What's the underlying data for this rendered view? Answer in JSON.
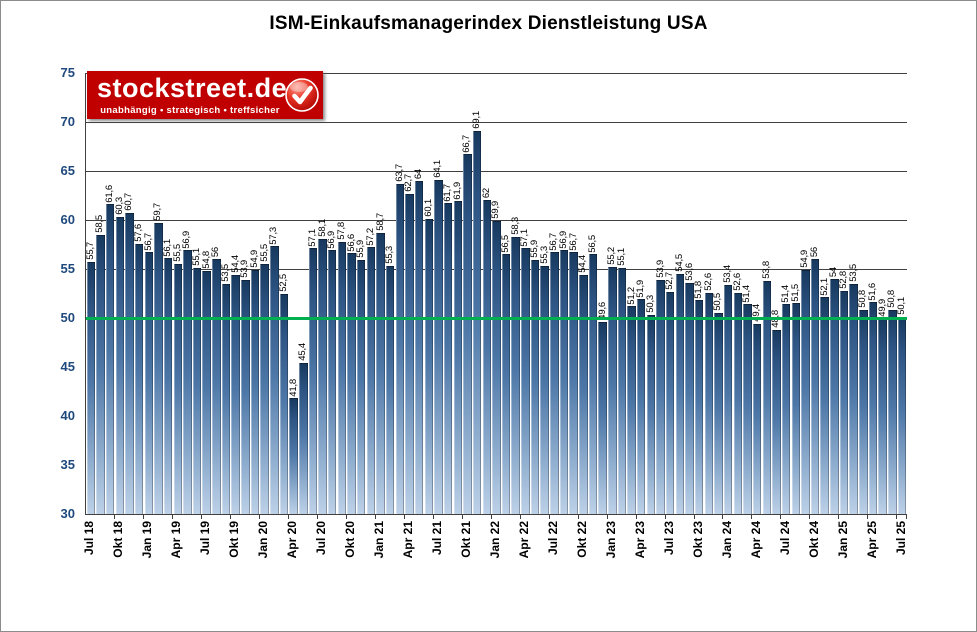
{
  "title": "ISM-Einkaufsmanagerindex Dienstleistung USA",
  "logo": {
    "name": "stockstreet.de",
    "tagline": "unabhängig • strategisch • treffsicher",
    "background_color": "#C00000",
    "badge_icon": "checkmark-icon"
  },
  "chart_data": {
    "type": "bar",
    "title": "ISM-Einkaufsmanagerindex Dienstleistung USA",
    "xlabel": "",
    "ylabel": "",
    "ylim": [
      30,
      75
    ],
    "y_ticks": [
      30,
      35,
      40,
      45,
      50,
      55,
      60,
      65,
      70,
      75
    ],
    "gridline_values": [
      55,
      60,
      65,
      70,
      75
    ],
    "grid_on": true,
    "reference_line": {
      "value": 50,
      "color": "#00B050"
    },
    "x_tick_interval": 3,
    "x_tick_labels": [
      "Jul 18",
      "Okt 18",
      "Jan 19",
      "Apr 19",
      "Jul 19",
      "Okt 19",
      "Jan 20",
      "Apr 20",
      "Jul 20",
      "Okt 20",
      "Jan 21",
      "Apr 21",
      "Jul 21",
      "Okt 21",
      "Jan 22",
      "Apr 22",
      "Jul 22",
      "Okt 22",
      "Jan 23",
      "Apr 23",
      "Jul 23",
      "Okt 23",
      "Jan 24",
      "Apr 24",
      "Jul 24",
      "Okt 24",
      "Jan 25",
      "Apr 25",
      "Jul 25"
    ],
    "values": [
      55.7,
      58.5,
      61.6,
      60.3,
      60.7,
      57.6,
      56.7,
      59.7,
      56.1,
      55.5,
      56.9,
      55.1,
      54.8,
      56,
      53.5,
      54.4,
      53.9,
      54.9,
      55.5,
      57.3,
      52.5,
      41.8,
      45.4,
      57.1,
      58.1,
      56.9,
      57.8,
      56.6,
      55.9,
      57.2,
      58.7,
      55.3,
      63.7,
      62.7,
      64,
      60.1,
      64.1,
      61.7,
      61.9,
      66.7,
      69.1,
      62,
      59.9,
      56.5,
      58.3,
      57.1,
      55.9,
      55.3,
      56.7,
      56.9,
      56.7,
      54.4,
      56.5,
      49.6,
      55.2,
      55.1,
      51.2,
      51.9,
      50.3,
      53.9,
      52.7,
      54.5,
      53.6,
      51.8,
      52.6,
      50.5,
      53.4,
      52.6,
      51.4,
      49.4,
      53.8,
      48.8,
      51.4,
      51.5,
      54.9,
      56,
      52.1,
      54,
      52.8,
      53.5,
      50.8,
      51.6,
      49.9,
      50.8,
      50.1
    ],
    "decimal_separator": ",",
    "colors": {
      "bar_top": "#17395f",
      "bar_bottom": "#bdd1e8",
      "gridline": "#404040",
      "y_axis_label": "#1F497D",
      "x_axis_label": "#000000",
      "data_label": "#000000",
      "reference_line": "#00B050"
    },
    "legend": null
  }
}
